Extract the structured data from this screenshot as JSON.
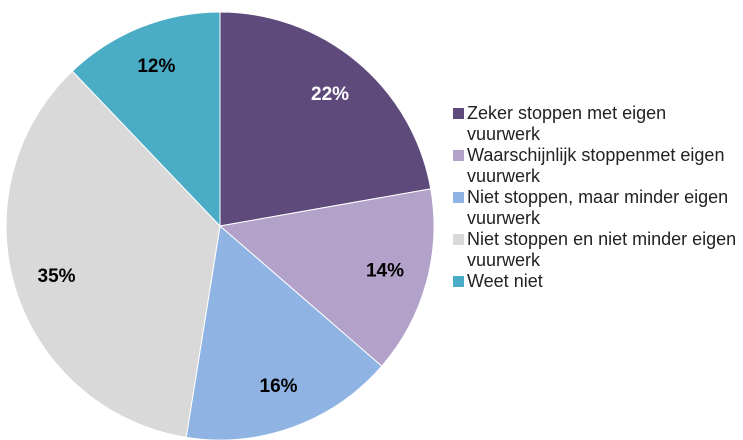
{
  "chart_data": {
    "type": "pie",
    "categories": [
      "Zeker stoppen met eigen vuurwerk",
      "Waarschijnlijk stoppenmet eigen vuurwerk",
      "Niet stoppen, maar minder eigen vuurwerk",
      "Niet stoppen en niet minder eigen vuurwerk",
      "Weet niet"
    ],
    "values": [
      22,
      14,
      16,
      35,
      12
    ],
    "value_labels": [
      "22%",
      "14%",
      "16%",
      "35%",
      "12%"
    ],
    "colors": [
      "#5e4b7c",
      "#b2a1c8",
      "#8fb4e3",
      "#d9d9d9",
      "#4bacc6"
    ],
    "legend": "right"
  }
}
